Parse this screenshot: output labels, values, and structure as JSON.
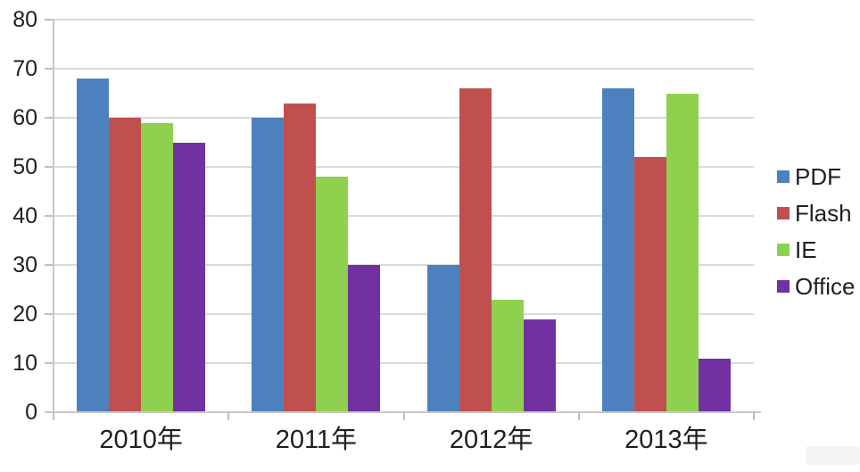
{
  "chart_data": {
    "type": "bar",
    "title": "",
    "xlabel": "",
    "ylabel": "",
    "categories": [
      "2010年",
      "2011年",
      "2012年",
      "2013年"
    ],
    "series": [
      {
        "name": "PDF",
        "color": "#4D81BE",
        "values": [
          68,
          60,
          30,
          66
        ]
      },
      {
        "name": "Flash",
        "color": "#C0504D",
        "values": [
          60,
          63,
          66,
          52
        ]
      },
      {
        "name": "IE",
        "color": "#8FD14F",
        "values": [
          59,
          48,
          23,
          65
        ]
      },
      {
        "name": "Office",
        "color": "#7131A1",
        "values": [
          55,
          30,
          19,
          11
        ]
      }
    ],
    "ylim": [
      0,
      80
    ],
    "yticks": [
      0,
      10,
      20,
      30,
      40,
      50,
      60,
      70,
      80
    ],
    "grid": true,
    "legend_position": "right",
    "legend_entries": [
      "PDF",
      "Flash",
      "IE",
      "Office"
    ]
  },
  "style": {
    "background": "#FFFFFF",
    "gridline_color": "#DADADA",
    "axis_color": "#C8C8C8",
    "tick_color": "#BFBFBF",
    "text_color": "#1F1F1F"
  }
}
